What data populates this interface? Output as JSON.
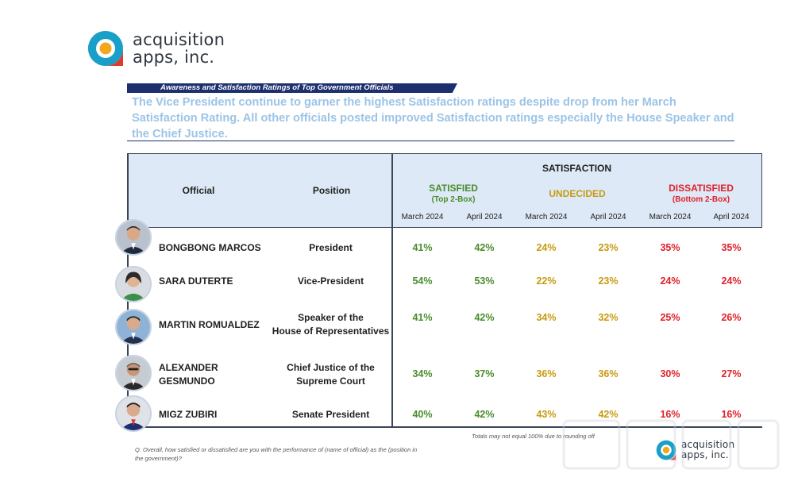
{
  "brand": {
    "line1": "acquisition",
    "line2": "apps, inc.",
    "colors": {
      "teal": "#19a0c9",
      "orange": "#f2a81d",
      "red": "#e03a2e",
      "navy": "#1d2f6e"
    }
  },
  "section_title": "Awareness and Satisfaction Ratings of Top Government Officials",
  "headline": "The Vice President continue to garner the highest Satisfaction ratings despite drop from her March Satisfaction Rating.  All other officials posted improved Satisfaction ratings especially the House Speaker and the Chief Justice.",
  "table": {
    "col_official": "Official",
    "col_position": "Position",
    "col_satisfaction": "SATISFACTION",
    "groups": [
      {
        "title": "SATISFIED",
        "sub": "(Top 2-Box)",
        "color": "#4a8c2a"
      },
      {
        "title": "UNDECIDED",
        "sub": "",
        "color": "#c79b10"
      },
      {
        "title": "DISSATISFIED",
        "sub": "(Bottom 2-Box)",
        "color": "#e0202a"
      }
    ],
    "months": [
      "March 2024",
      "April 2024",
      "March 2024",
      "April 2024",
      "March 2024",
      "April 2024"
    ],
    "rows": [
      {
        "name1": "BONGBONG MARCOS",
        "name2": "",
        "pos1": "President",
        "pos2": "",
        "values": [
          "41%",
          "42%",
          "24%",
          "23%",
          "35%",
          "35%"
        ]
      },
      {
        "name1": "SARA DUTERTE",
        "name2": "",
        "pos1": "Vice-President",
        "pos2": "",
        "values": [
          "54%",
          "53%",
          "22%",
          "23%",
          "24%",
          "24%"
        ]
      },
      {
        "name1": "MARTIN ROMUALDEZ",
        "name2": "",
        "pos1": "Speaker of the",
        "pos2": "House of Representatives",
        "values": [
          "41%",
          "42%",
          "34%",
          "32%",
          "25%",
          "26%"
        ]
      },
      {
        "name1": "ALEXANDER",
        "name2": "GESMUNDO",
        "pos1": "Chief Justice of the",
        "pos2": "Supreme Court",
        "values": [
          "34%",
          "37%",
          "36%",
          "36%",
          "30%",
          "27%"
        ]
      },
      {
        "name1": "MIGZ ZUBIRI",
        "name2": "",
        "pos1": "Senate President",
        "pos2": "",
        "values": [
          "40%",
          "42%",
          "43%",
          "42%",
          "16%",
          "16%"
        ]
      }
    ]
  },
  "footnote_totals": "Totals may not equal 100% due to rounding off",
  "footnote_question": "Q. Overall, how satisfied or dissatisfied are you with the performance of (name of official) as the (position in the government)?"
}
